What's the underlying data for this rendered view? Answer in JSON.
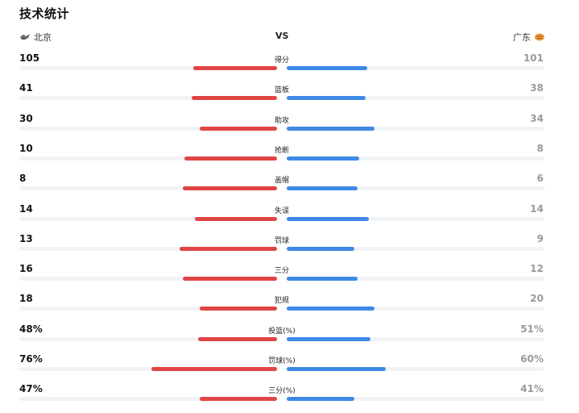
{
  "title": "技术统计",
  "home_team": {
    "name": "北京",
    "logo_icon": "beijing-team-logo-icon",
    "color": "#e04545"
  },
  "away_team": {
    "name": "广东",
    "logo_icon": "guangdong-team-logo-icon",
    "color": "#3f89e6"
  },
  "vs_label": "VS",
  "stats": [
    {
      "label": "得分",
      "home": "105",
      "away": "101",
      "home_fill": 0.51,
      "away_fill": 0.49
    },
    {
      "label": "篮板",
      "home": "41",
      "away": "38",
      "home_fill": 0.52,
      "away_fill": 0.48
    },
    {
      "label": "助攻",
      "home": "30",
      "away": "34",
      "home_fill": 0.47,
      "away_fill": 0.53
    },
    {
      "label": "抢断",
      "home": "10",
      "away": "8",
      "home_fill": 0.56,
      "away_fill": 0.44
    },
    {
      "label": "盖帽",
      "home": "8",
      "away": "6",
      "home_fill": 0.57,
      "away_fill": 0.43
    },
    {
      "label": "失误",
      "home": "14",
      "away": "14",
      "home_fill": 0.5,
      "away_fill": 0.5
    },
    {
      "label": "罚球",
      "home": "13",
      "away": "9",
      "home_fill": 0.59,
      "away_fill": 0.41
    },
    {
      "label": "三分",
      "home": "16",
      "away": "12",
      "home_fill": 0.57,
      "away_fill": 0.43
    },
    {
      "label": "犯规",
      "home": "18",
      "away": "20",
      "home_fill": 0.47,
      "away_fill": 0.53
    },
    {
      "label": "投篮(%)",
      "home": "48%",
      "away": "51%",
      "home_fill": 0.48,
      "away_fill": 0.51
    },
    {
      "label": "罚球(%)",
      "home": "76%",
      "away": "60%",
      "home_fill": 0.76,
      "away_fill": 0.6
    },
    {
      "label": "三分(%)",
      "home": "47%",
      "away": "41%",
      "home_fill": 0.47,
      "away_fill": 0.41
    }
  ]
}
